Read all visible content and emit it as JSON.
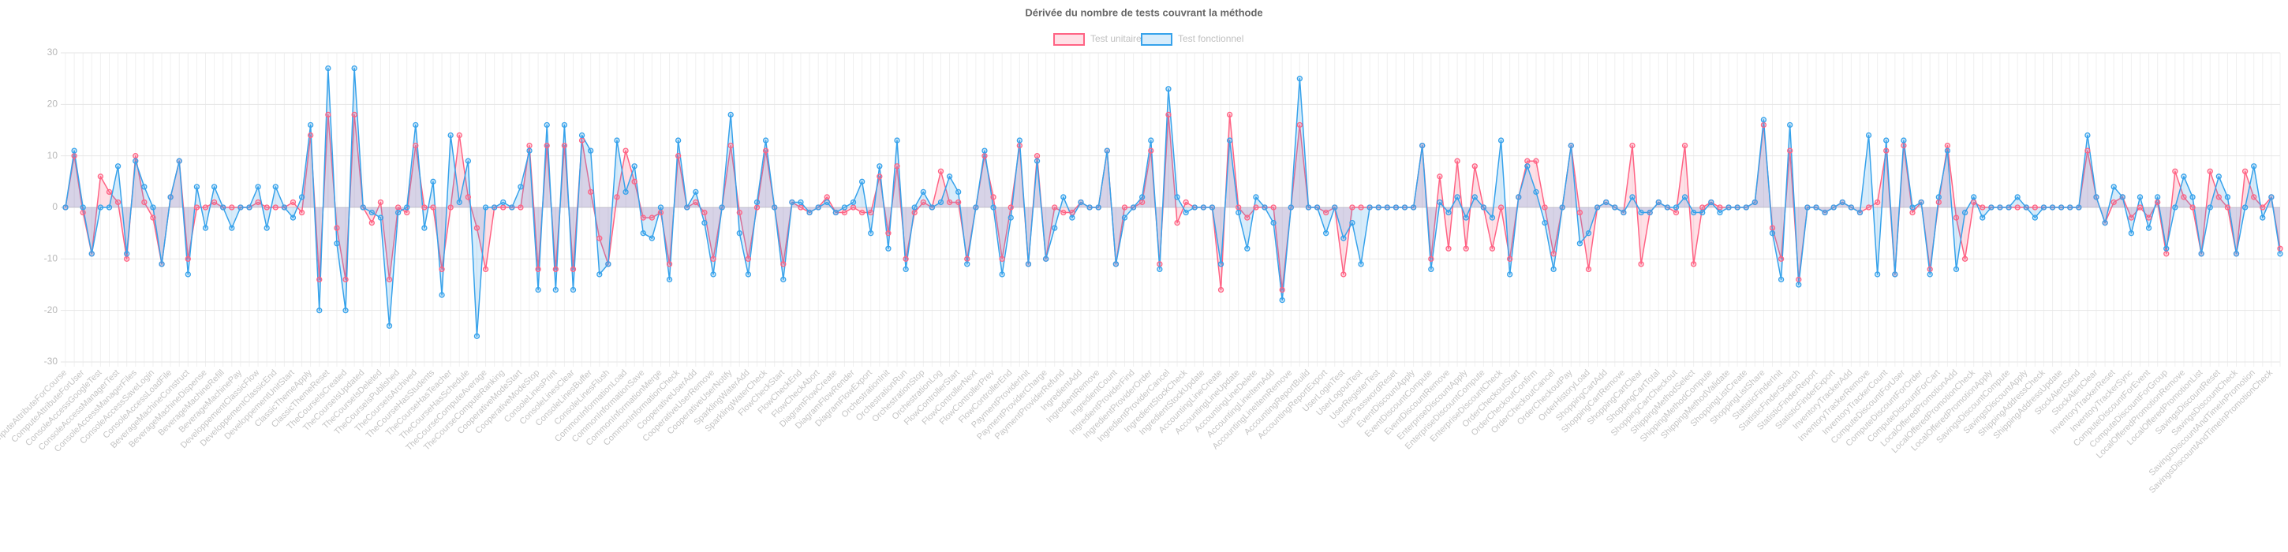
{
  "chart_data": {
    "type": "line",
    "title": "Dérivée du nombre de tests couvrant la méthode",
    "categories": [
      "ComputeAttributeForCourse",
      null,
      "ComputeAttributeForUser",
      null,
      "ConsoleAccessGoogleTest",
      null,
      "ConsoleAccessManagerTest",
      null,
      "ConsoleAccessManagerFiles",
      null,
      "ConsoleAccessSaveLogin",
      null,
      "ConsoleAccessLoadFile",
      null,
      "BeverageMachineConstruct",
      null,
      "BeverageMachineDispense",
      null,
      "BeverageMachineRefill",
      null,
      "BeverageMachinePay",
      null,
      "DeveloppementClassicFlow",
      null,
      "DeveloppementClassicEnd",
      null,
      "DeveloppementUnitStart",
      null,
      "ClassicThemeApply",
      null,
      "ClassicThemeReset",
      null,
      "TheCourseIsCreated",
      null,
      "TheCourseIsUpdated",
      null,
      "TheCourseIsDeleted",
      null,
      "TheCourseIsPublished",
      null,
      "TheCourseIsArchived",
      null,
      "TheCourseHasStudents",
      null,
      "TheCourseHasTeacher",
      null,
      "TheCourseHasSchedule",
      null,
      "TheCourseComputeAverage",
      null,
      "TheCourseComputeRanking",
      null,
      "CooperativeModeStart",
      null,
      "CooperativeModeStop",
      null,
      "ConsoleLinesPrint",
      null,
      "ConsoleLinesClear",
      null,
      "ConsoleLinesBuffer",
      null,
      "ConsoleLinesFlush",
      null,
      "CommonInformationLoad",
      null,
      "CommonInformationSave",
      null,
      "CommonInformationMerge",
      null,
      "CommonInformationCheck",
      null,
      "CooperativeUserAdd",
      null,
      "CooperativeUserRemove",
      null,
      "CooperativeUserNotify",
      null,
      "SparklingWaterAdd",
      null,
      "SparklingWaterCheck",
      null,
      "FlowCheckStart",
      null,
      "FlowCheckEnd",
      null,
      "FlowCheckAbort",
      null,
      "DiagramFlowCreate",
      null,
      "DiagramFlowRender",
      null,
      "DiagramFlowExport",
      null,
      "OrchestrationInit",
      null,
      "OrchestrationRun",
      null,
      "OrchestrationStop",
      null,
      "OrchestrationLog",
      null,
      "FlowControllerStart",
      null,
      "FlowControllerNext",
      null,
      "FlowControllerPrev",
      null,
      "FlowControllerEnd",
      null,
      "PaymentProviderInit",
      null,
      "PaymentProviderCharge",
      null,
      "PaymentProviderRefund",
      null,
      "IngredientAdd",
      null,
      "IngredientRemove",
      null,
      "IngredientCount",
      null,
      "IngredientProviderFind",
      null,
      "IngredientProviderOrder",
      null,
      "IngredientProviderCancel",
      null,
      "IngredientStockCheck",
      null,
      "IngredientStockUpdate",
      null,
      "AccountingLineCreate",
      null,
      "AccountingLineUpdate",
      null,
      "AccountingLineDelete",
      null,
      "AccountingLineItemAdd",
      null,
      "AccountingLineItemRemove",
      null,
      "AccountingReportBuild",
      null,
      "AccountingReportExport",
      null,
      "UserLoginTest",
      null,
      "UserLogoutTest",
      null,
      "UserRegisterTest",
      null,
      "UserPasswordReset",
      null,
      "EventDiscountApply",
      null,
      "EventDiscountCompute",
      null,
      "EventDiscountRemove",
      null,
      "EnterpriseDiscountApply",
      null,
      "EnterpriseDiscountCompute",
      null,
      "EnterpriseDiscountCheck",
      null,
      "OrderCheckoutStart",
      null,
      "OrderCheckoutConfirm",
      null,
      "OrderCheckoutCancel",
      null,
      "OrderCheckoutPay",
      null,
      "OrderHistoryLoad",
      null,
      "ShoppingCartAdd",
      null,
      "ShoppingCartRemove",
      null,
      "ShoppingCartClear",
      null,
      "ShoppingCartTotal",
      null,
      "ShoppingCartCheckout",
      null,
      "ShippingMethodSelect",
      null,
      "ShippingMethodCompute",
      null,
      "ShippingMethodValidate",
      null,
      "ShoppingListCreate",
      null,
      "ShoppingListShare",
      null,
      "StatisticFinderInit",
      null,
      "StatisticFinderSearch",
      null,
      "StatisticFinderReport",
      null,
      "StatisticFinderExport",
      null,
      "InventoryTrackerAdd",
      null,
      "InventoryTrackerRemove",
      null,
      "InventoryTrackerCount",
      null,
      "ComputeDiscountForUser",
      null,
      "ComputeDiscountForOrder",
      null,
      "ComputeDiscountForCart",
      null,
      "LocalOfferedPromotionAdd",
      null,
      "LocalOfferedPromotionCheck",
      null,
      "LocalOfferedPromotionApply",
      null,
      "SavingsDiscountCompute",
      null,
      "SavingsDiscountApply",
      null,
      "ShippingAddressCheck",
      null,
      "ShippingAddressUpdate",
      null,
      "StockAlertSend",
      null,
      "StockAlertClear",
      null,
      "InventoryTrackerReset",
      null,
      "InventoryTrackerSync",
      null,
      "ComputeDiscountForEvent",
      null,
      "ComputeDiscountForGroup",
      null,
      "LocalOfferedPromotionRemove",
      null,
      "LocalOfferedPromotionList",
      null,
      "SavingsDiscountReset",
      null,
      "SavingsDiscountCheck",
      null,
      "SavingsDiscountAndTimeInPromotion",
      null,
      "SavingsDiscountAndTimeInPromotionCheck",
      null
    ],
    "series": [
      {
        "name": "Test unitaire",
        "color": "#ff6384",
        "values": [
          0,
          10,
          -1,
          -9,
          6,
          3,
          1,
          -10,
          10,
          1,
          -2,
          -11,
          2,
          9,
          -10,
          0,
          0,
          1,
          0,
          0,
          0,
          0,
          1,
          0,
          0,
          0,
          1,
          -1,
          14,
          -14,
          18,
          -4,
          -14,
          18,
          0,
          -3,
          1,
          -14,
          0,
          -1,
          12,
          0,
          0,
          -12,
          0,
          14,
          2,
          -4,
          -12,
          0,
          0,
          0,
          0,
          12,
          -12,
          12,
          -12,
          12,
          -12,
          13,
          3,
          -6,
          -11,
          2,
          11,
          5,
          -2,
          -2,
          -1,
          -11,
          10,
          0,
          1,
          -1,
          -10,
          0,
          12,
          -1,
          -10,
          0,
          11,
          0,
          -11,
          1,
          0,
          -1,
          0,
          2,
          -1,
          -1,
          0,
          -1,
          -1,
          6,
          -5,
          8,
          -10,
          -1,
          1,
          0,
          7,
          1,
          1,
          -10,
          0,
          10,
          2,
          -10,
          0,
          12,
          -11,
          10,
          -10,
          0,
          -1,
          -1,
          1,
          0,
          0,
          11,
          -11,
          0,
          0,
          1,
          11,
          -11,
          18,
          -3,
          1,
          0,
          0,
          0,
          -16,
          18,
          0,
          -2,
          0,
          0,
          0,
          -16,
          0,
          16,
          0,
          0,
          -1,
          0,
          -13,
          0,
          0,
          0,
          0,
          0,
          0,
          0,
          0,
          12,
          -10,
          6,
          -8,
          9,
          -8,
          8,
          0,
          -8,
          0,
          -10,
          2,
          9,
          9,
          0,
          -9,
          0,
          12,
          -1,
          -12,
          0,
          1,
          0,
          -1,
          12,
          -11,
          -1,
          1,
          0,
          -1,
          12,
          -11,
          0,
          1,
          0,
          0,
          0,
          0,
          1,
          16,
          -4,
          -10,
          11,
          -14,
          0,
          0,
          -1,
          0,
          1,
          0,
          -1,
          0,
          1,
          11,
          -13,
          12,
          -1,
          1,
          -12,
          1,
          12,
          -2,
          -10,
          1,
          0,
          0,
          0,
          0,
          0,
          0,
          0,
          0,
          0,
          0,
          0,
          0,
          11,
          2,
          -3,
          1,
          2,
          -2,
          0,
          -2,
          1,
          -9,
          7,
          2,
          0,
          -9,
          7,
          2,
          0,
          -9,
          7,
          2,
          0,
          2,
          -8
        ]
      },
      {
        "name": "Test fonctionnel",
        "color": "#36a2eb",
        "values": [
          0,
          11,
          0,
          -9,
          0,
          0,
          8,
          -9,
          9,
          4,
          0,
          -11,
          2,
          9,
          -13,
          4,
          -4,
          4,
          0,
          -4,
          0,
          0,
          4,
          -4,
          4,
          0,
          -2,
          2,
          16,
          -20,
          27,
          -7,
          -20,
          27,
          0,
          -1,
          -2,
          -23,
          -1,
          0,
          16,
          -4,
          5,
          -17,
          14,
          1,
          9,
          -25,
          0,
          0,
          1,
          0,
          4,
          11,
          -16,
          16,
          -16,
          16,
          -16,
          14,
          11,
          -13,
          -11,
          13,
          3,
          8,
          -5,
          -6,
          0,
          -14,
          13,
          0,
          3,
          -3,
          -13,
          0,
          18,
          -5,
          -13,
          1,
          13,
          0,
          -14,
          1,
          1,
          -1,
          0,
          1,
          -1,
          0,
          1,
          5,
          -5,
          8,
          -8,
          13,
          -12,
          0,
          3,
          0,
          1,
          6,
          3,
          -11,
          0,
          11,
          0,
          -13,
          -2,
          13,
          -11,
          9,
          -10,
          -4,
          2,
          -2,
          1,
          0,
          0,
          11,
          -11,
          -2,
          0,
          2,
          13,
          -12,
          23,
          2,
          -1,
          0,
          0,
          0,
          -11,
          13,
          -1,
          -8,
          2,
          0,
          -3,
          -18,
          0,
          25,
          0,
          0,
          -5,
          0,
          -6,
          -3,
          -11,
          0,
          0,
          0,
          0,
          0,
          0,
          12,
          -12,
          1,
          -1,
          2,
          -2,
          2,
          0,
          -2,
          13,
          -13,
          2,
          8,
          3,
          -3,
          -12,
          0,
          12,
          -7,
          -5,
          0,
          1,
          0,
          -1,
          2,
          -1,
          -1,
          1,
          0,
          0,
          2,
          -1,
          -1,
          1,
          -1,
          0,
          0,
          0,
          1,
          17,
          -5,
          -14,
          16,
          -15,
          0,
          0,
          -1,
          0,
          1,
          0,
          -1,
          14,
          -13,
          13,
          -13,
          13,
          0,
          1,
          -13,
          2,
          11,
          -12,
          -1,
          2,
          -2,
          0,
          0,
          0,
          2,
          0,
          -2,
          0,
          0,
          0,
          0,
          0,
          14,
          2,
          -3,
          4,
          2,
          -5,
          2,
          -4,
          2,
          -8,
          0,
          6,
          2,
          -9,
          0,
          6,
          2,
          -9,
          0,
          8,
          -2,
          2,
          -9
        ]
      }
    ],
    "ylim": [
      -30,
      30
    ],
    "yticks": [
      -30,
      -20,
      -10,
      0,
      10,
      20,
      30
    ],
    "grid": true,
    "legend": "top"
  }
}
